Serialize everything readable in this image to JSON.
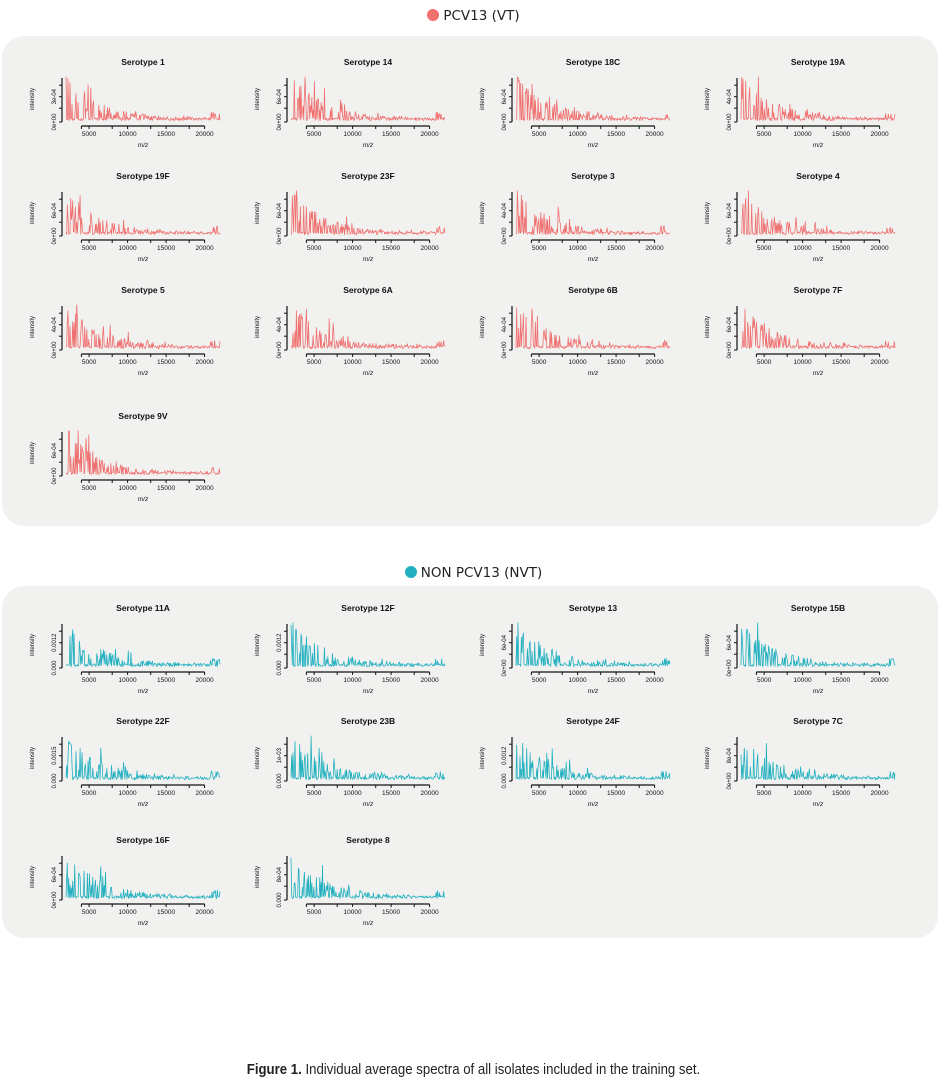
{
  "vt": {
    "label": "PCV13 (VT)",
    "color": "#f07070"
  },
  "nvt": {
    "label": "NON PCV13 (NVT)",
    "color": "#22b0c0"
  },
  "caption": {
    "bold": "Figure 1.",
    "text": " Individual average spectra of all isolates included in the training set."
  },
  "chart_data": [
    {
      "type": "line",
      "group": "vt",
      "title": "Serotype 1",
      "xlabel": "m/z",
      "ylabel": "intensity",
      "xticks": [
        5000,
        10000,
        15000,
        20000
      ],
      "yticks": [
        "0e+00",
        "3e-04"
      ],
      "xlim": [
        2000,
        22000
      ],
      "ylim": [
        0,
        0.00055
      ]
    },
    {
      "type": "line",
      "group": "vt",
      "title": "Serotype 14",
      "xlabel": "m/z",
      "ylabel": "intensity",
      "xticks": [
        5000,
        10000,
        15000,
        20000
      ],
      "yticks": [
        "0e+00",
        "6e-04"
      ],
      "xlim": [
        2000,
        22000
      ],
      "ylim": [
        0,
        0.0008
      ]
    },
    {
      "type": "line",
      "group": "vt",
      "title": "Serotype 18C",
      "xlabel": "m/z",
      "ylabel": "intensity",
      "xticks": [
        5000,
        10000,
        15000,
        20000
      ],
      "yticks": [
        "0e+00",
        "6e-04"
      ],
      "xlim": [
        2000,
        22000
      ],
      "ylim": [
        0,
        0.0008
      ]
    },
    {
      "type": "line",
      "group": "vt",
      "title": "Serotype 19A",
      "xlabel": "m/z",
      "ylabel": "intensity",
      "xticks": [
        5000,
        10000,
        15000,
        20000
      ],
      "yticks": [
        "0e+00",
        "4e-04"
      ],
      "xlim": [
        2000,
        22000
      ],
      "ylim": [
        0,
        0.0006
      ]
    },
    {
      "type": "line",
      "group": "vt",
      "title": "Serotype 19F",
      "xlabel": "m/z",
      "ylabel": "intensity",
      "xticks": [
        5000,
        10000,
        15000,
        20000
      ],
      "yticks": [
        "0e+00",
        "6e-04"
      ],
      "xlim": [
        2000,
        22000
      ],
      "ylim": [
        0,
        0.0008
      ]
    },
    {
      "type": "line",
      "group": "vt",
      "title": "Serotype 23F",
      "xlabel": "m/z",
      "ylabel": "intensity",
      "xticks": [
        5000,
        10000,
        15000,
        20000
      ],
      "yticks": [
        "0e+00",
        "6e-04"
      ],
      "xlim": [
        2000,
        22000
      ],
      "ylim": [
        0,
        0.0008
      ]
    },
    {
      "type": "line",
      "group": "vt",
      "title": "Serotype 3",
      "xlabel": "m/z",
      "ylabel": "intensity",
      "xticks": [
        5000,
        10000,
        15000,
        20000
      ],
      "yticks": [
        "0e+00",
        "4e-04"
      ],
      "xlim": [
        2000,
        22000
      ],
      "ylim": [
        0,
        0.0006
      ]
    },
    {
      "type": "line",
      "group": "vt",
      "title": "Serotype 4",
      "xlabel": "m/z",
      "ylabel": "intensity",
      "xticks": [
        5000,
        10000,
        15000,
        20000
      ],
      "yticks": [
        "0e+00",
        "6e-04"
      ],
      "xlim": [
        2000,
        22000
      ],
      "ylim": [
        0,
        0.0008
      ]
    },
    {
      "type": "line",
      "group": "vt",
      "title": "Serotype 5",
      "xlabel": "m/z",
      "ylabel": "intensity",
      "xticks": [
        5000,
        10000,
        15000,
        20000
      ],
      "yticks": [
        "0e+00",
        "4e-04"
      ],
      "xlim": [
        2000,
        22000
      ],
      "ylim": [
        0,
        0.0006
      ]
    },
    {
      "type": "line",
      "group": "vt",
      "title": "Serotype 6A",
      "xlabel": "m/z",
      "ylabel": "intensity",
      "xticks": [
        5000,
        10000,
        15000,
        20000
      ],
      "yticks": [
        "0e+00",
        "4e-04"
      ],
      "xlim": [
        2000,
        22000
      ],
      "ylim": [
        0,
        0.0006
      ]
    },
    {
      "type": "line",
      "group": "vt",
      "title": "Serotype 6B",
      "xlabel": "m/z",
      "ylabel": "intensity",
      "xticks": [
        5000,
        10000,
        15000,
        20000
      ],
      "yticks": [
        "0e+00",
        "4e-04"
      ],
      "xlim": [
        2000,
        22000
      ],
      "ylim": [
        0,
        0.0006
      ]
    },
    {
      "type": "line",
      "group": "vt",
      "title": "Serotype 7F",
      "xlabel": "m/z",
      "ylabel": "intensity",
      "xticks": [
        5000,
        10000,
        15000,
        20000
      ],
      "yticks": [
        "0e+00",
        "6e-04"
      ],
      "xlim": [
        2000,
        22000
      ],
      "ylim": [
        0,
        0.0008
      ]
    },
    {
      "type": "line",
      "group": "vt",
      "title": "Serotype 9V",
      "xlabel": "m/z",
      "ylabel": "intensity",
      "xticks": [
        5000,
        10000,
        15000,
        20000
      ],
      "yticks": [
        "0e+00",
        "6e-04"
      ],
      "xlim": [
        2000,
        22000
      ],
      "ylim": [
        0,
        0.0008
      ]
    },
    {
      "type": "line",
      "group": "nvt",
      "title": "Serotype 11A",
      "xlabel": "m/z",
      "ylabel": "intensity",
      "xticks": [
        5000,
        10000,
        15000,
        20000
      ],
      "yticks": [
        "0.000",
        "0.0012"
      ],
      "xlim": [
        2000,
        22000
      ],
      "ylim": [
        0,
        0.0015
      ]
    },
    {
      "type": "line",
      "group": "nvt",
      "title": "Serotype 12F",
      "xlabel": "m/z",
      "ylabel": "intensity",
      "xticks": [
        5000,
        10000,
        15000,
        20000
      ],
      "yticks": [
        "0.000",
        "0.0012"
      ],
      "xlim": [
        2000,
        22000
      ],
      "ylim": [
        0,
        0.0015
      ]
    },
    {
      "type": "line",
      "group": "nvt",
      "title": "Serotype 13",
      "xlabel": "m/z",
      "ylabel": "intensity",
      "xticks": [
        5000,
        10000,
        15000,
        20000
      ],
      "yticks": [
        "0e+00",
        "6e-04"
      ],
      "xlim": [
        2000,
        22000
      ],
      "ylim": [
        0,
        0.0008
      ]
    },
    {
      "type": "line",
      "group": "nvt",
      "title": "Serotype 15B",
      "xlabel": "m/z",
      "ylabel": "intensity",
      "xticks": [
        5000,
        10000,
        15000,
        20000
      ],
      "yticks": [
        "0e+00",
        "6e-04"
      ],
      "xlim": [
        2000,
        22000
      ],
      "ylim": [
        0,
        0.0008
      ]
    },
    {
      "type": "line",
      "group": "nvt",
      "title": "Serotype 22F",
      "xlabel": "m/z",
      "ylabel": "intensity",
      "xticks": [
        5000,
        10000,
        15000,
        20000
      ],
      "yticks": [
        "0.000",
        "0.0015"
      ],
      "xlim": [
        2000,
        22000
      ],
      "ylim": [
        0,
        0.0019
      ]
    },
    {
      "type": "line",
      "group": "nvt",
      "title": "Serotype 23B",
      "xlabel": "m/z",
      "ylabel": "intensity",
      "xticks": [
        5000,
        10000,
        15000,
        20000
      ],
      "yticks": [
        "0.000",
        "1e-03"
      ],
      "xlim": [
        2000,
        22000
      ],
      "ylim": [
        0,
        0.0013
      ]
    },
    {
      "type": "line",
      "group": "nvt",
      "title": "Serotype 24F",
      "xlabel": "m/z",
      "ylabel": "intensity",
      "xticks": [
        5000,
        10000,
        15000,
        20000
      ],
      "yticks": [
        "0.000",
        "0.0012"
      ],
      "xlim": [
        2000,
        22000
      ],
      "ylim": [
        0,
        0.0015
      ]
    },
    {
      "type": "line",
      "group": "nvt",
      "title": "Serotype 7C",
      "xlabel": "m/z",
      "ylabel": "intensity",
      "xticks": [
        5000,
        10000,
        15000,
        20000
      ],
      "yticks": [
        "0e+00",
        "8e-04"
      ],
      "xlim": [
        2000,
        22000
      ],
      "ylim": [
        0,
        0.001
      ]
    },
    {
      "type": "line",
      "group": "nvt",
      "title": "Serotype 16F",
      "xlabel": "m/z",
      "ylabel": "intensity",
      "xticks": [
        5000,
        10000,
        15000,
        20000
      ],
      "yticks": [
        "0e+00",
        "6e-04"
      ],
      "xlim": [
        2000,
        22000
      ],
      "ylim": [
        0,
        0.0008
      ]
    },
    {
      "type": "line",
      "group": "nvt",
      "title": "Serotype 8",
      "xlabel": "m/z",
      "ylabel": "intensity",
      "xticks": [
        5000,
        10000,
        15000,
        20000
      ],
      "yticks": [
        "0.000",
        "8e-04"
      ],
      "xlim": [
        2000,
        22000
      ],
      "ylim": [
        0,
        0.001
      ]
    }
  ]
}
